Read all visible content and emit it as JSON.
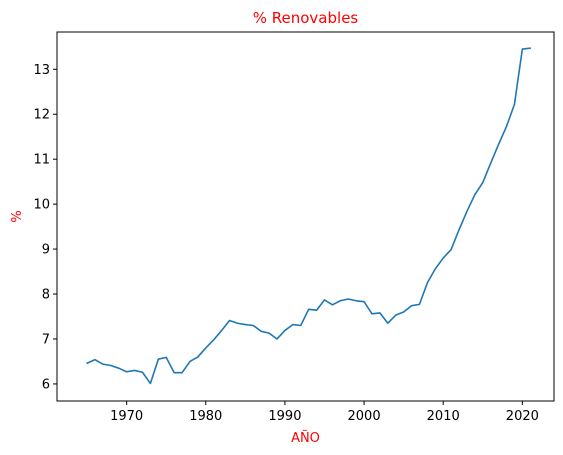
{
  "chart_data": {
    "type": "line",
    "title": "% Renovables",
    "xlabel": "AÑO",
    "ylabel": "%",
    "title_color": "#ff0000",
    "label_color": "#ff0000",
    "line_color": "#1f77b4",
    "xlim": [
      1961.2,
      2024.0
    ],
    "ylim": [
      5.62,
      13.83
    ],
    "xticks": [
      1970,
      1980,
      1990,
      2000,
      2010,
      2020
    ],
    "yticks": [
      6,
      7,
      8,
      9,
      10,
      11,
      12,
      13
    ],
    "grid": false,
    "legend": "none",
    "series": [
      {
        "x": [
          1965,
          1966,
          1967,
          1968,
          1969,
          1970,
          1971,
          1972,
          1973,
          1974,
          1975,
          1976,
          1977,
          1978,
          1979,
          1980,
          1981,
          1982,
          1983,
          1984,
          1985,
          1986,
          1987,
          1988,
          1989,
          1990,
          1991,
          1992,
          1993,
          1994,
          1995,
          1996,
          1997,
          1998,
          1999,
          2000,
          2001,
          2002,
          2003,
          2004,
          2005,
          2006,
          2007,
          2008,
          2009,
          2010,
          2011,
          2012,
          2013,
          2014,
          2015,
          2016,
          2017,
          2018,
          2019,
          2020,
          2021
        ],
        "y": [
          6.46,
          6.54,
          6.44,
          6.41,
          6.35,
          6.27,
          6.3,
          6.26,
          6.01,
          6.55,
          6.59,
          6.25,
          6.25,
          6.5,
          6.6,
          6.8,
          6.98,
          7.19,
          7.41,
          7.35,
          7.32,
          7.3,
          7.17,
          7.13,
          7.0,
          7.19,
          7.32,
          7.3,
          7.66,
          7.64,
          7.87,
          7.76,
          7.85,
          7.89,
          7.85,
          7.83,
          7.56,
          7.58,
          7.35,
          7.53,
          7.6,
          7.74,
          7.77,
          8.25,
          8.56,
          8.8,
          8.99,
          9.43,
          9.84,
          10.21,
          10.48,
          10.91,
          11.33,
          11.73,
          12.22,
          13.45,
          13.47
        ]
      }
    ]
  }
}
